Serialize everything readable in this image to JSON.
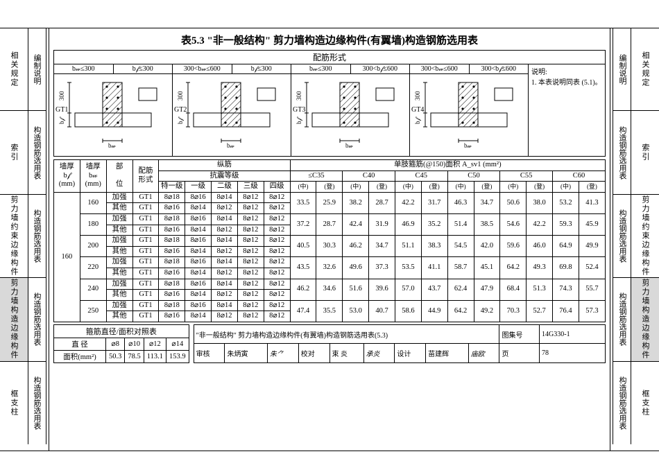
{
  "title": "表5.3  \"非一般结构\" 剪力墙构造边缘构件(有翼墙)构造钢筋选用表",
  "left_tabs": [
    "相关规定",
    "索引",
    "剪力墙约束边缘构件",
    "剪力墙构造边缘构件",
    "框支柱"
  ],
  "right_tabs": [
    "相关规定",
    "索引",
    "剪力墙约束边缘构件",
    "剪力墙构造边缘构件",
    "框支柱"
  ],
  "left_labels": [
    "编制说明",
    "构造钢筋选用表",
    "构造钢筋选用表",
    "构造钢筋选用表",
    "构造钢筋选用表"
  ],
  "right_labels": [
    "编制说明",
    "构造钢筋选用表",
    "构造钢筋选用表",
    "构造钢筋选用表",
    "构造钢筋选用表"
  ],
  "active_tab_index": 3,
  "diagram": {
    "header": "配筋形式",
    "panels": [
      {
        "tag": "GT1",
        "conds": [
          "b𝓌≤300",
          "b𝒻≤300"
        ]
      },
      {
        "tag": "GT2",
        "conds": [
          "300<b𝓌≤600",
          "b𝒻≤300"
        ]
      },
      {
        "tag": "GT3",
        "conds": [
          "b𝓌≤300",
          "300<b𝒻≤600"
        ]
      },
      {
        "tag": "GT4",
        "conds": [
          "300<b𝓌≤600",
          "300<b𝒻≤600"
        ]
      }
    ],
    "note_title": "说明:",
    "note_body": "1. 本表说明同表 (5.1)。",
    "dim_v": "300",
    "dim_bf": "b𝒻",
    "dim_bw": "b𝓌"
  },
  "main_table": {
    "head": {
      "c1": "墙厚\nb𝒻\n(mm)",
      "c2": "墙厚\nb𝓌\n(mm)",
      "c3": "部\n\n位",
      "c4": "配筋\n形式",
      "long_group": "纵筋",
      "seismic_group": "抗震等级",
      "levels": [
        "特一级",
        "一级",
        "二级",
        "三级",
        "四级"
      ],
      "stirrup_group": "单肢箍筋(@150)面积 A_sv1 (mm²)",
      "grades": [
        "≤C35",
        "C40",
        "C45",
        "C50",
        "C55",
        "C60"
      ],
      "sub": [
        "(中)",
        "(登)"
      ]
    },
    "bf_val": "160",
    "rows": [
      {
        "bw": "160",
        "pos": "加强",
        "form": "GT1",
        "lv": [
          "8⌀18",
          "8⌀16",
          "8⌀14",
          "8⌀12",
          "8⌀12"
        ],
        "stir": [
          "33.5",
          "25.9",
          "38.2",
          "28.7",
          "42.2",
          "31.7",
          "46.3",
          "34.7",
          "50.6",
          "38.0",
          "53.2",
          "41.3"
        ],
        "merge": true
      },
      {
        "bw": "",
        "pos": "其他",
        "form": "GT1",
        "lv": [
          "8⌀16",
          "8⌀14",
          "8⌀12",
          "8⌀12",
          "8⌀12"
        ]
      },
      {
        "bw": "180",
        "pos": "加强",
        "form": "GT1",
        "lv": [
          "8⌀18",
          "8⌀16",
          "8⌀14",
          "8⌀12",
          "8⌀12"
        ],
        "stir": [
          "37.2",
          "28.7",
          "42.4",
          "31.9",
          "46.9",
          "35.2",
          "51.4",
          "38.5",
          "54.6",
          "42.2",
          "59.3",
          "45.9"
        ],
        "merge": true
      },
      {
        "bw": "",
        "pos": "其他",
        "form": "GT1",
        "lv": [
          "8⌀16",
          "8⌀14",
          "8⌀12",
          "8⌀12",
          "8⌀12"
        ]
      },
      {
        "bw": "200",
        "pos": "加强",
        "form": "GT1",
        "lv": [
          "8⌀18",
          "8⌀16",
          "8⌀14",
          "8⌀12",
          "8⌀12"
        ],
        "stir": [
          "40.5",
          "30.3",
          "46.2",
          "34.7",
          "51.1",
          "38.3",
          "54.5",
          "42.0",
          "59.6",
          "46.0",
          "64.9",
          "49.9"
        ],
        "merge": true
      },
      {
        "bw": "",
        "pos": "其他",
        "form": "GT1",
        "lv": [
          "8⌀16",
          "8⌀14",
          "8⌀12",
          "8⌀12",
          "8⌀12"
        ]
      },
      {
        "bw": "220",
        "pos": "加强",
        "form": "GT1",
        "lv": [
          "8⌀18",
          "8⌀16",
          "8⌀14",
          "8⌀12",
          "8⌀12"
        ],
        "stir": [
          "43.5",
          "32.6",
          "49.6",
          "37.3",
          "53.5",
          "41.1",
          "58.7",
          "45.1",
          "64.2",
          "49.3",
          "69.8",
          "52.4"
        ],
        "merge": true
      },
      {
        "bw": "",
        "pos": "其他",
        "form": "GT1",
        "lv": [
          "8⌀16",
          "8⌀14",
          "8⌀12",
          "8⌀12",
          "8⌀12"
        ]
      },
      {
        "bw": "240",
        "pos": "加强",
        "form": "GT1",
        "lv": [
          "8⌀18",
          "8⌀16",
          "8⌀14",
          "8⌀12",
          "8⌀12"
        ],
        "stir": [
          "46.2",
          "34.6",
          "51.6",
          "39.6",
          "57.0",
          "43.7",
          "62.4",
          "47.9",
          "68.4",
          "51.3",
          "74.3",
          "55.7"
        ],
        "merge": true
      },
      {
        "bw": "",
        "pos": "其他",
        "form": "GT1",
        "lv": [
          "8⌀16",
          "8⌀14",
          "8⌀12",
          "8⌀12",
          "8⌀12"
        ]
      },
      {
        "bw": "250",
        "pos": "加强",
        "form": "GT1",
        "lv": [
          "8⌀18",
          "8⌀16",
          "8⌀14",
          "8⌀12",
          "8⌀12"
        ],
        "stir": [
          "47.4",
          "35.5",
          "53.0",
          "40.7",
          "58.6",
          "44.9",
          "64.2",
          "49.2",
          "70.3",
          "52.7",
          "76.4",
          "57.3"
        ],
        "merge": true
      },
      {
        "bw": "",
        "pos": "其他",
        "form": "GT1",
        "lv": [
          "8⌀16",
          "8⌀14",
          "8⌀12",
          "8⌀12",
          "8⌀12"
        ]
      }
    ]
  },
  "stirrup_table": {
    "caption": "箍筋直径/面积对照表",
    "row1": [
      "直  径",
      "⌀8",
      "⌀10",
      "⌀12",
      "⌀14"
    ],
    "row2": [
      "面积(mm²)",
      "50.3",
      "78.5",
      "113.1",
      "153.9"
    ]
  },
  "titleblock": {
    "title": "\"非一般结构\" 剪力墙构造边缘构件(有翼墙)构造钢筋选用表(5.3)",
    "setno_label": "图集号",
    "setno": "14G330-1",
    "audit": "审核",
    "audit_name": "朱炳寅",
    "check": "校对",
    "check_name": "束  炎",
    "design": "设计",
    "design_name": "苗建辉",
    "page_label": "页",
    "page": "78",
    "sig1": "朱⺈",
    "sig2": "承炎",
    "sig3": "庙欧"
  }
}
